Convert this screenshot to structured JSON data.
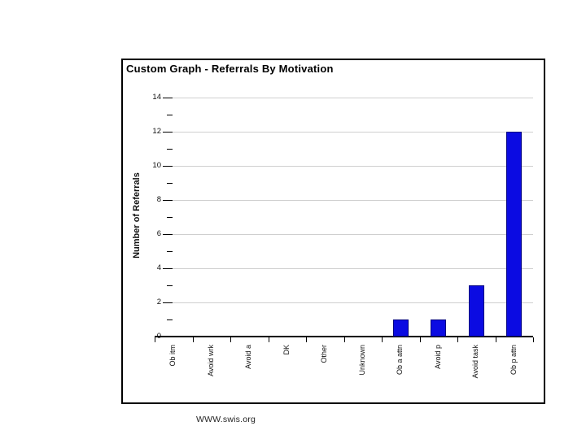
{
  "page": {
    "background_color": "#ffffff",
    "panel_border_color": "#000000"
  },
  "panel": {
    "title": "Custom Graph - Referrals By Motivation"
  },
  "chart_data": {
    "type": "bar",
    "title": "Custom Graph - Referrals By Motivation",
    "categories": [
      "Ob itm",
      "Avoid wrk",
      "Avoid a",
      "DK",
      "Other",
      "Unknown",
      "Ob a attn",
      "Avoid p",
      "Avoid task",
      "Ob p attn"
    ],
    "values": [
      0,
      0,
      0,
      0,
      0,
      0,
      1,
      1,
      3,
      12
    ],
    "xlabel": "",
    "ylabel": "Number of Referrals",
    "ylim": [
      0,
      14
    ],
    "ytick_step": 2,
    "minor_tick_step": 1,
    "grid": "horizontal gridlines at even values, light gray",
    "legend_position": "none",
    "bar_fill_color": "#0b0be2",
    "bar_border_color": "#000080",
    "gridline_color": "#cfcfcf"
  },
  "footer": {
    "url_text": "WWW.swis.org"
  }
}
